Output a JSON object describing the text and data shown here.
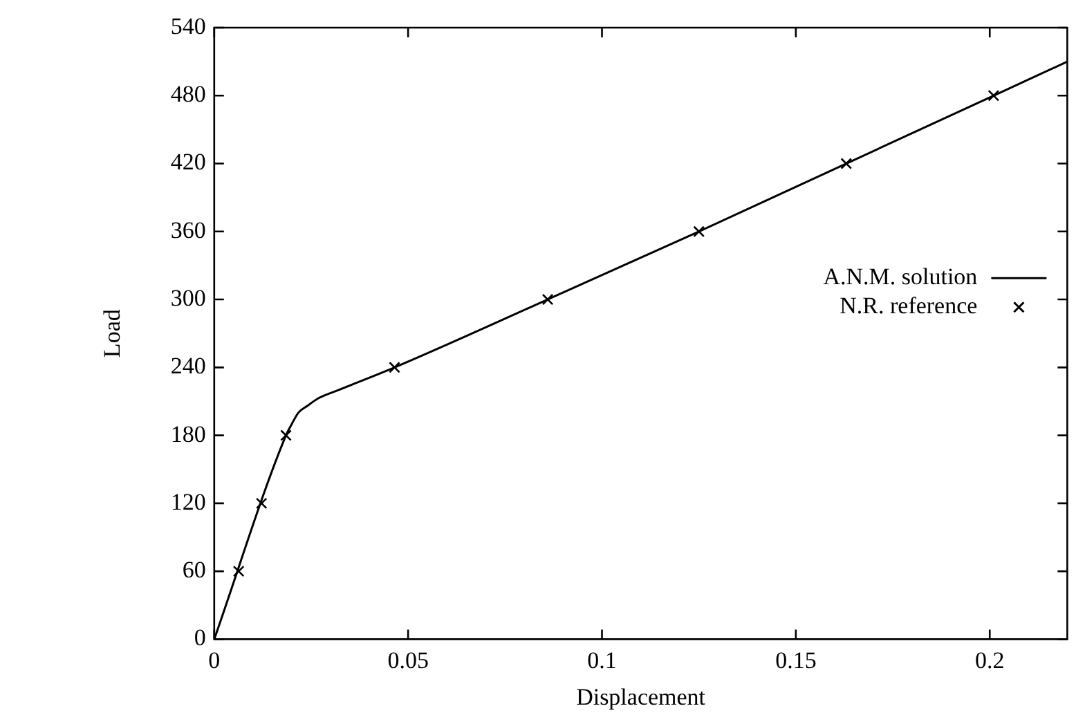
{
  "chart_data": {
    "type": "line",
    "xlabel": "Displacement",
    "ylabel": "Load",
    "xlim": [
      0,
      0.22
    ],
    "xticks": [
      0,
      0.05,
      0.1,
      0.15,
      0.2
    ],
    "ylim": [
      0,
      540
    ],
    "yticks": [
      0,
      60,
      120,
      180,
      240,
      300,
      360,
      420,
      480,
      540
    ],
    "grid": false,
    "legend": "right",
    "series": [
      {
        "name": "A.N.M. solution",
        "type": "line",
        "color": "#000000",
        "marker": "none",
        "line_style": "solid",
        "x": [
          0,
          0.0185,
          0.02,
          0.0217,
          0.024,
          0.027,
          0.032,
          0.0465,
          0.086,
          0.125,
          0.163,
          0.201,
          0.22
        ],
        "values": [
          0,
          180,
          190,
          200,
          206,
          213,
          220,
          240,
          300,
          360,
          420,
          480,
          510
        ]
      },
      {
        "name": "N.R. reference",
        "type": "scatter",
        "color": "#000000",
        "marker": "cross",
        "x": [
          0.0063,
          0.0122,
          0.0185,
          0.0465,
          0.086,
          0.125,
          0.163,
          0.201
        ],
        "values": [
          60,
          120,
          180,
          240,
          300,
          360,
          420,
          480
        ]
      }
    ]
  }
}
